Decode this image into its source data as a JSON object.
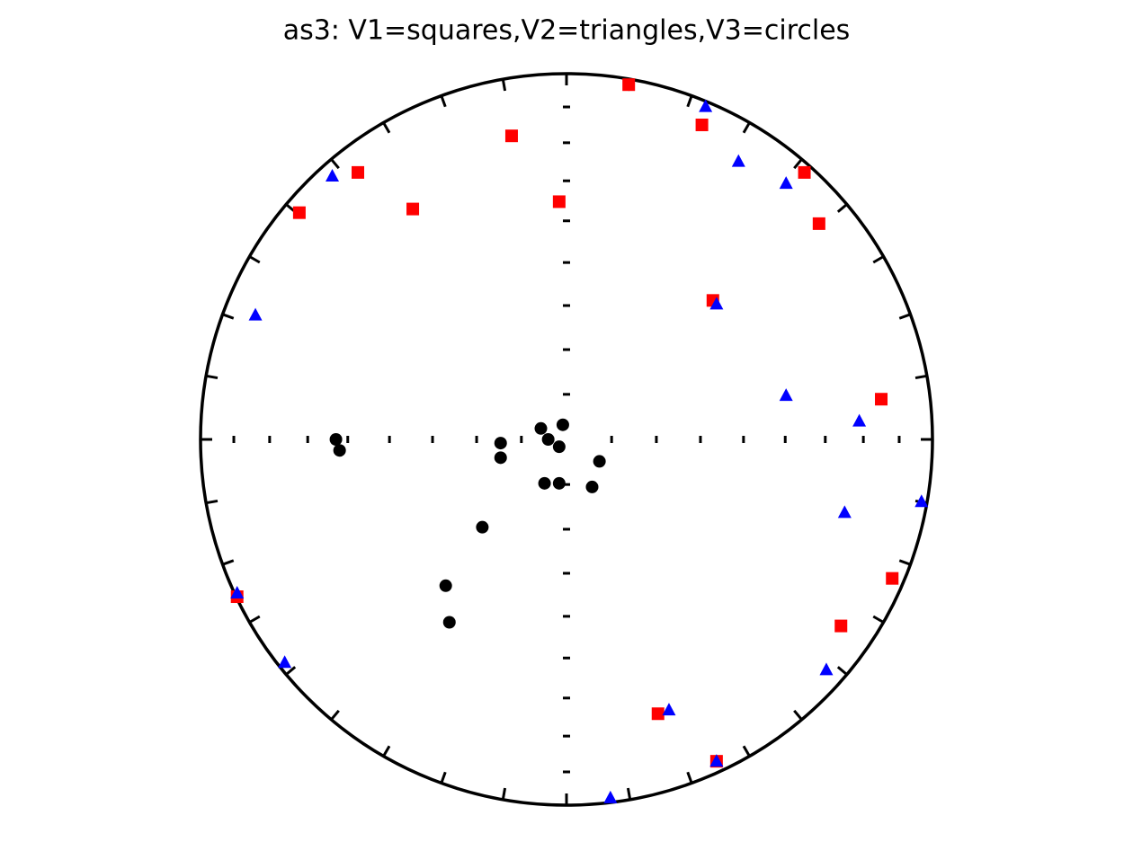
{
  "chart_data": {
    "type": "scatter",
    "title": "as3: V1=squares,V2=triangles,V3=circles",
    "xlim": [
      -1,
      1
    ],
    "ylim": [
      -1,
      1
    ],
    "series": [
      {
        "color": "#ff0000",
        "marker": "square",
        "x": [
          0.17,
          -0.15,
          -0.57,
          -0.73,
          -0.42,
          -0.02,
          0.37,
          0.65,
          0.69,
          0.4,
          0.86,
          0.89,
          0.75,
          0.25,
          0.41,
          -0.9
        ],
        "y": [
          0.97,
          0.83,
          0.73,
          0.62,
          0.63,
          0.65,
          0.86,
          0.73,
          0.59,
          0.38,
          0.11,
          -0.38,
          -0.51,
          -0.75,
          -0.88,
          -0.43
        ]
      },
      {
        "color": "#0000ff",
        "marker": "triangle",
        "x": [
          0.38,
          0.47,
          0.6,
          -0.64,
          -0.85,
          0.41,
          0.6,
          0.8,
          0.97,
          0.76,
          0.71,
          0.28,
          0.41,
          0.12,
          -0.77,
          -0.9
        ],
        "y": [
          0.91,
          0.76,
          0.7,
          0.72,
          0.34,
          0.37,
          0.12,
          0.05,
          -0.17,
          -0.2,
          -0.63,
          -0.74,
          -0.88,
          -0.98,
          -0.61,
          -0.42
        ]
      },
      {
        "color": "#000000",
        "marker": "circle",
        "x": [
          -0.01,
          -0.07,
          -0.05,
          -0.02,
          -0.18,
          -0.18,
          -0.63,
          -0.62,
          0.09,
          -0.06,
          -0.02,
          0.07,
          -0.23,
          -0.33,
          -0.32
        ],
        "y": [
          0.04,
          0.03,
          0.0,
          -0.02,
          -0.01,
          -0.05,
          0.0,
          -0.03,
          -0.06,
          -0.12,
          -0.12,
          -0.13,
          -0.24,
          -0.4,
          -0.5
        ]
      }
    ]
  }
}
